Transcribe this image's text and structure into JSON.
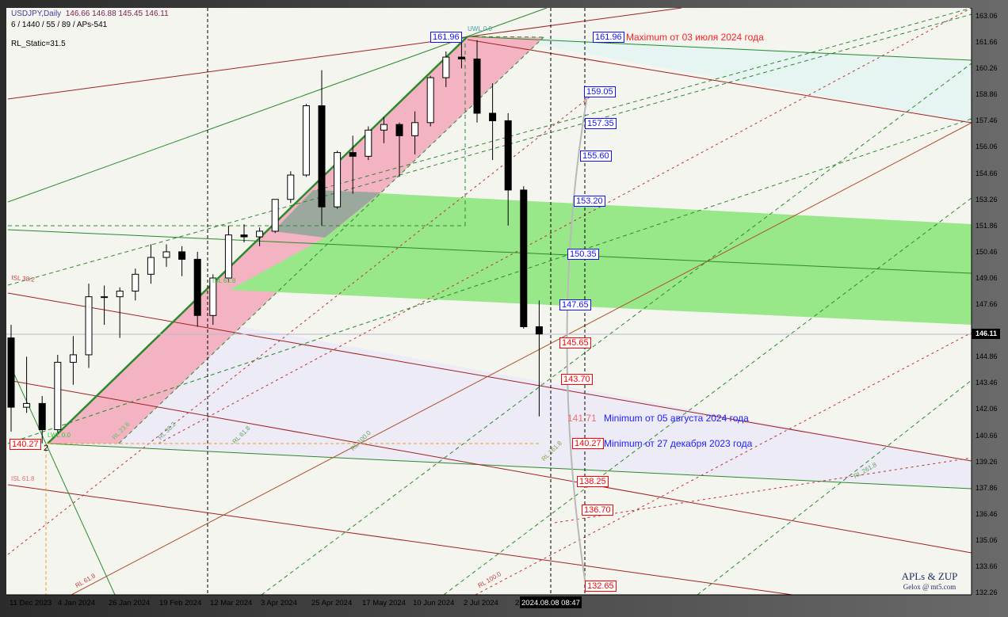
{
  "header": {
    "symbol": "USDJPY,Daily",
    "ohlc": "146.66 146.88 145.45 146.11",
    "params": "6 / 1440 / 55 / 89 / APs-541",
    "static": "RL_Static=31.5"
  },
  "watermark": {
    "title": "APLs & ZUP",
    "subtitle": "Gelox @ mt5.com"
  },
  "cursor_time": "2024.08.08 08:47",
  "current_price": "146.11",
  "colors": {
    "background": "#f5f5f0",
    "pink_channel": "#f4b3c2",
    "green_zone": "#98e88a",
    "bull": "#ffffff",
    "bear": "#000000",
    "blue_label": "#1010ff",
    "red_label": "#ff0000"
  },
  "level_labels": [
    {
      "text": "161.96",
      "color": "blue"
    },
    {
      "text": "159.05",
      "color": "blue"
    },
    {
      "text": "157.35",
      "color": "blue"
    },
    {
      "text": "155.60",
      "color": "blue"
    },
    {
      "text": "153.20",
      "color": "blue"
    },
    {
      "text": "150.35",
      "color": "blue"
    },
    {
      "text": "147.65",
      "color": "blue"
    },
    {
      "text": "145.65",
      "color": "red"
    },
    {
      "text": "143.70",
      "color": "red"
    },
    {
      "text": "140.27",
      "color": "red"
    },
    {
      "text": "138.25",
      "color": "red"
    },
    {
      "text": "136.70",
      "color": "red"
    },
    {
      "text": "132.65",
      "color": "red"
    }
  ],
  "extreme_labels": {
    "high": "161.96",
    "low_left": "140.27",
    "low_aug": "141.71",
    "pivot_number": "2"
  },
  "notes": {
    "max": "Maximum от 03 июля 2024 года",
    "min_aug": "Minimum от 05 августа 2024 года",
    "min_dec": "Minimum от 27 декабря 2023 года"
  },
  "fib_tags": [
    "UWL 0.0",
    "ISL 38.2",
    "ISL 61.8",
    "LWL 0.0",
    "RL 23.6",
    "RL 38.2",
    "RL 61.8",
    "RL 100.0",
    "RL 161.8",
    "RL 261.8",
    "RL 61.8",
    "RL 100.0",
    "ISL 61.8"
  ],
  "chart_data": {
    "type": "candlestick",
    "title": "USDJPY,Daily",
    "y_ticks": [
      "163.06",
      "161.66",
      "160.26",
      "158.86",
      "157.46",
      "156.06",
      "154.66",
      "153.26",
      "151.86",
      "150.46",
      "149.06",
      "147.66",
      "144.86",
      "143.46",
      "142.06",
      "140.66",
      "139.26",
      "137.86",
      "136.46",
      "135.06",
      "133.66",
      "132.26"
    ],
    "ylim": [
      132.26,
      163.06
    ],
    "x_ticks": [
      "11 Dec 2023",
      "4 Jan 2024",
      "26 Jan 2024",
      "19 Feb 2024",
      "12 Mar 2024",
      "3 Apr 2024",
      "25 Apr 2024",
      "17 May 2024",
      "10 Jun 2024",
      "2 Jul 2024",
      "2"
    ],
    "grid": false,
    "candles_weekly_approx": [
      [
        "2023-12-11",
        145.9,
        146.6,
        140.9,
        142.2
      ],
      [
        "2023-12-18",
        142.2,
        144.9,
        141.9,
        142.4
      ],
      [
        "2023-12-25",
        142.4,
        142.8,
        140.27,
        141.0
      ],
      [
        "2024-01-01",
        141.0,
        145.0,
        140.8,
        144.6
      ],
      [
        "2024-01-08",
        144.6,
        146.0,
        143.4,
        145.0
      ],
      [
        "2024-01-15",
        145.0,
        148.8,
        144.3,
        148.1
      ],
      [
        "2024-01-22",
        148.1,
        148.7,
        146.6,
        148.1
      ],
      [
        "2024-01-29",
        148.1,
        148.6,
        145.9,
        148.4
      ],
      [
        "2024-02-05",
        148.4,
        149.6,
        147.9,
        149.3
      ],
      [
        "2024-02-12",
        149.3,
        150.9,
        148.8,
        150.2
      ],
      [
        "2024-02-19",
        150.2,
        150.9,
        149.7,
        150.5
      ],
      [
        "2024-02-26",
        150.5,
        150.8,
        149.2,
        150.1
      ],
      [
        "2024-03-04",
        150.1,
        150.5,
        146.5,
        147.1
      ],
      [
        "2024-03-11",
        147.1,
        149.3,
        146.6,
        149.1
      ],
      [
        "2024-03-18",
        149.1,
        151.9,
        148.9,
        151.4
      ],
      [
        "2024-03-25",
        151.4,
        151.97,
        151.0,
        151.3
      ],
      [
        "2024-04-01",
        151.3,
        151.8,
        150.8,
        151.6
      ],
      [
        "2024-04-08",
        151.6,
        153.3,
        151.5,
        153.3
      ],
      [
        "2024-04-15",
        153.3,
        154.8,
        153.1,
        154.6
      ],
      [
        "2024-04-22",
        154.6,
        158.4,
        154.5,
        158.3
      ],
      [
        "2024-04-29",
        158.3,
        160.2,
        151.9,
        152.9
      ],
      [
        "2024-05-06",
        152.9,
        155.9,
        152.8,
        155.8
      ],
      [
        "2024-05-13",
        155.8,
        156.7,
        153.6,
        155.6
      ],
      [
        "2024-05-20",
        155.6,
        157.2,
        155.4,
        157.0
      ],
      [
        "2024-05-27",
        157.0,
        157.7,
        156.3,
        157.3
      ],
      [
        "2024-06-03",
        157.3,
        157.4,
        154.5,
        156.7
      ],
      [
        "2024-06-10",
        156.7,
        158.0,
        155.7,
        157.4
      ],
      [
        "2024-06-17",
        157.4,
        159.9,
        157.2,
        159.8
      ],
      [
        "2024-06-24",
        159.8,
        161.2,
        159.3,
        160.9
      ],
      [
        "2024-07-01",
        160.9,
        161.96,
        160.3,
        160.8
      ],
      [
        "2024-07-08",
        160.8,
        161.8,
        157.4,
        157.9
      ],
      [
        "2024-07-15",
        157.9,
        159.5,
        155.4,
        157.5
      ],
      [
        "2024-07-22",
        157.5,
        157.9,
        151.9,
        153.8
      ],
      [
        "2024-07-29",
        153.8,
        154.0,
        146.4,
        146.5
      ],
      [
        "2024-08-05",
        146.5,
        147.9,
        141.71,
        146.11
      ]
    ]
  }
}
